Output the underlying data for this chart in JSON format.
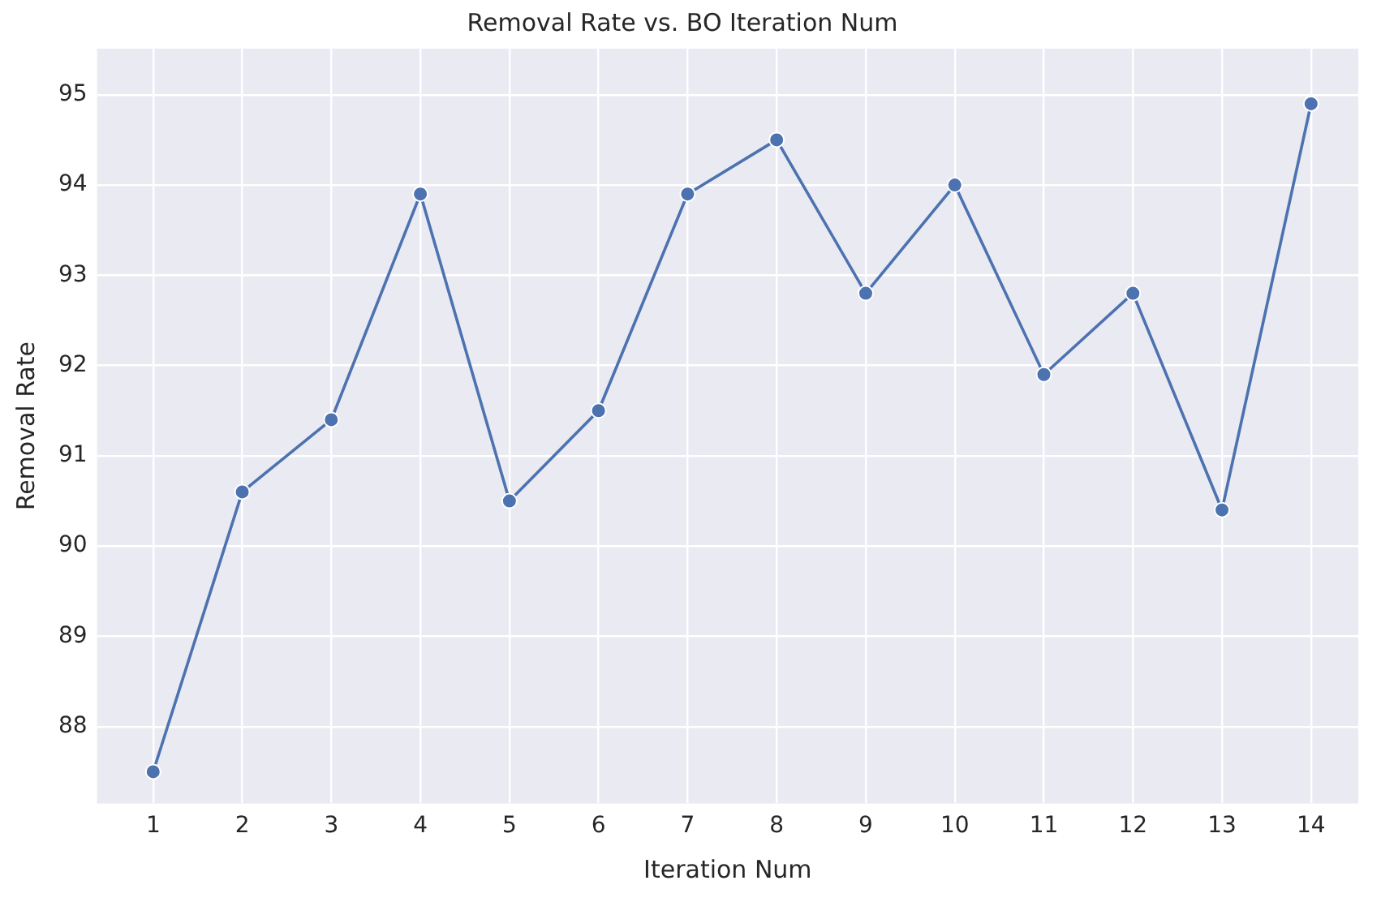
{
  "chart_data": {
    "type": "line",
    "title": "Removal Rate vs. BO Iteration Num",
    "xlabel": "Iteration Num",
    "ylabel": "Removal Rate",
    "x": [
      1,
      2,
      3,
      4,
      5,
      6,
      7,
      8,
      9,
      10,
      11,
      12,
      13,
      14
    ],
    "series": [
      {
        "color": "#4c72b0",
        "values": [
          87.5,
          90.6,
          91.4,
          93.9,
          90.5,
          91.5,
          93.9,
          94.5,
          92.8,
          94.0,
          91.9,
          92.8,
          90.4,
          94.9
        ]
      }
    ],
    "xlim": [
      0.37,
      14.53
    ],
    "ylim": [
      87.15,
      95.51
    ],
    "xticks": [
      1,
      2,
      3,
      4,
      5,
      6,
      7,
      8,
      9,
      10,
      11,
      12,
      13,
      14
    ],
    "yticks": [
      88,
      89,
      90,
      91,
      92,
      93,
      94,
      95
    ],
    "grid": true,
    "legend": false,
    "marker": "circle",
    "line_style": "solid"
  }
}
